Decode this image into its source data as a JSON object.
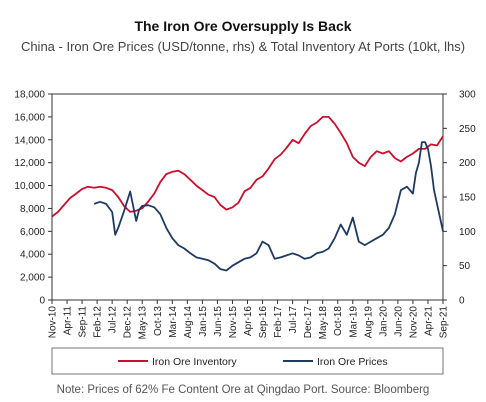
{
  "chart_data": {
    "type": "line",
    "title": "The Iron Ore Oversupply Is Back",
    "subtitle": "China - Iron Ore Prices (USD/tonne, rhs) & Total Inventory At Ports (10kt, lhs)",
    "note": "Note: Prices of 62% Fe Content Ore at Qingdao Port. Source: Bloomberg",
    "y_left": {
      "min": 0,
      "max": 18000,
      "ticks": [
        0,
        2000,
        4000,
        6000,
        8000,
        10000,
        12000,
        14000,
        16000,
        18000
      ],
      "tick_labels": [
        "0",
        "2,000",
        "4,000",
        "6,000",
        "8,000",
        "10,000",
        "12,000",
        "14,000",
        "16,000",
        "18,000"
      ]
    },
    "y_right": {
      "min": 0,
      "max": 300,
      "ticks": [
        0,
        50,
        100,
        150,
        200,
        250,
        300
      ],
      "tick_labels": [
        "0",
        "50",
        "100",
        "150",
        "200",
        "250",
        "300"
      ]
    },
    "x_ticks": [
      "Nov-10",
      "Apr-11",
      "Sep-11",
      "Feb-12",
      "Jul-12",
      "Dec-12",
      "May-13",
      "Oct-13",
      "Mar-14",
      "Aug-14",
      "Jan-15",
      "Jun-15",
      "Nov-15",
      "Apr-16",
      "Sep-16",
      "Feb-17",
      "Jul-17",
      "Dec-17",
      "May-18",
      "Oct-18",
      "Mar-19",
      "Aug-19",
      "Jan-20",
      "Jun-20",
      "Nov-20",
      "Apr-21",
      "Sep-21"
    ],
    "legend": {
      "placement": "bottom"
    },
    "grid": false,
    "series": [
      {
        "name": "Iron Ore Inventory",
        "axis": "left",
        "color": "#c8102e",
        "x": [
          0,
          2,
          4,
          6,
          8,
          10,
          12,
          14,
          16,
          18,
          20,
          22,
          24,
          26,
          28,
          30,
          32,
          34,
          36,
          38,
          40,
          42,
          44,
          46,
          48,
          50,
          52,
          54,
          56,
          58,
          60,
          62,
          64,
          66,
          68,
          70,
          72,
          74,
          76,
          78,
          80,
          82,
          84,
          86,
          88,
          90,
          92,
          94,
          96,
          98,
          100,
          102,
          104,
          106,
          108,
          110,
          112,
          114,
          116,
          118,
          120,
          122,
          124,
          126,
          128,
          130
        ],
        "values": [
          7300,
          7700,
          8300,
          8900,
          9300,
          9700,
          9900,
          9800,
          9900,
          9800,
          9600,
          9000,
          8200,
          7700,
          7800,
          8000,
          8600,
          9300,
          10300,
          11000,
          11200,
          11300,
          11000,
          10500,
          10000,
          9600,
          9200,
          9000,
          8300,
          7900,
          8100,
          8500,
          9500,
          9800,
          10500,
          10800,
          11500,
          12300,
          12700,
          13300,
          14000,
          13700,
          14500,
          15200,
          15500,
          16000,
          16000,
          15400,
          14600,
          13700,
          12500,
          12000,
          11700,
          12500,
          13000,
          12800,
          13000,
          12400,
          12100,
          12500,
          12800,
          13200,
          13200,
          13600,
          13500,
          14300
        ]
      },
      {
        "name": "Iron Ore Prices",
        "axis": "right",
        "color": "#1f3a60",
        "x": [
          14,
          16,
          18,
          20,
          21,
          22,
          24,
          26,
          28,
          29,
          30,
          32,
          34,
          36,
          38,
          40,
          42,
          44,
          46,
          48,
          50,
          52,
          54,
          56,
          58,
          60,
          62,
          64,
          66,
          68,
          70,
          72,
          74,
          76,
          78,
          80,
          82,
          84,
          86,
          88,
          90,
          92,
          94,
          96,
          98,
          100,
          102,
          104,
          106,
          108,
          110,
          112,
          114,
          116,
          118,
          120,
          121,
          122,
          123,
          124,
          125,
          126,
          127,
          128,
          129,
          130
        ],
        "values": [
          140,
          143,
          140,
          128,
          95,
          105,
          130,
          158,
          115,
          132,
          137,
          138,
          135,
          125,
          105,
          90,
          80,
          75,
          68,
          62,
          60,
          58,
          53,
          45,
          43,
          50,
          55,
          60,
          62,
          68,
          85,
          80,
          60,
          62,
          65,
          68,
          65,
          60,
          62,
          68,
          70,
          75,
          90,
          110,
          95,
          120,
          85,
          80,
          85,
          90,
          95,
          105,
          125,
          160,
          165,
          155,
          185,
          200,
          230,
          230,
          220,
          195,
          160,
          140,
          120,
          100
        ]
      }
    ]
  }
}
